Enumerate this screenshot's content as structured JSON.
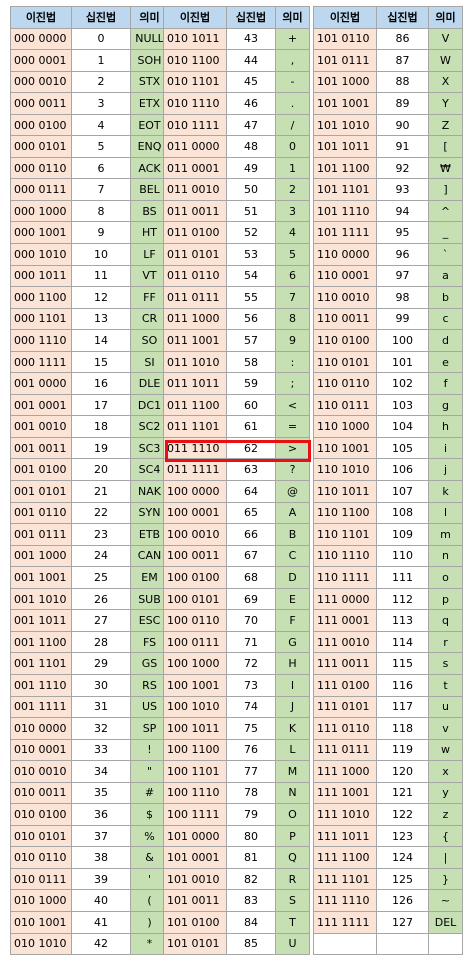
{
  "headers": {
    "binary": "이진법",
    "decimal": "십진법",
    "meaning": "의미"
  },
  "highlight_color": "#e81010",
  "columns": [
    [
      [
        "000 0000",
        "0",
        "NULL"
      ],
      [
        "000 0001",
        "1",
        "SOH"
      ],
      [
        "000 0010",
        "2",
        "STX"
      ],
      [
        "000 0011",
        "3",
        "ETX"
      ],
      [
        "000 0100",
        "4",
        "EOT"
      ],
      [
        "000 0101",
        "5",
        "ENQ"
      ],
      [
        "000 0110",
        "6",
        "ACK"
      ],
      [
        "000 0111",
        "7",
        "BEL"
      ],
      [
        "000 1000",
        "8",
        "BS"
      ],
      [
        "000 1001",
        "9",
        "HT"
      ],
      [
        "000 1010",
        "10",
        "LF"
      ],
      [
        "000 1011",
        "11",
        "VT"
      ],
      [
        "000 1100",
        "12",
        "FF"
      ],
      [
        "000 1101",
        "13",
        "CR"
      ],
      [
        "000 1110",
        "14",
        "SO"
      ],
      [
        "000 1111",
        "15",
        "SI"
      ],
      [
        "001 0000",
        "16",
        "DLE"
      ],
      [
        "001 0001",
        "17",
        "DC1"
      ],
      [
        "001 0010",
        "18",
        "SC2"
      ],
      [
        "001 0011",
        "19",
        "SC3"
      ],
      [
        "001 0100",
        "20",
        "SC4"
      ],
      [
        "001 0101",
        "21",
        "NAK"
      ],
      [
        "001 0110",
        "22",
        "SYN"
      ],
      [
        "001 0111",
        "23",
        "ETB"
      ],
      [
        "001 1000",
        "24",
        "CAN"
      ],
      [
        "001 1001",
        "25",
        "EM"
      ],
      [
        "001 1010",
        "26",
        "SUB"
      ],
      [
        "001 1011",
        "27",
        "ESC"
      ],
      [
        "001 1100",
        "28",
        "FS"
      ],
      [
        "001 1101",
        "29",
        "GS"
      ],
      [
        "001 1110",
        "30",
        "RS"
      ],
      [
        "001 1111",
        "31",
        "US"
      ],
      [
        "010 0000",
        "32",
        "SP"
      ],
      [
        "010 0001",
        "33",
        "!"
      ],
      [
        "010 0010",
        "34",
        "\""
      ],
      [
        "010 0011",
        "35",
        "#"
      ],
      [
        "010 0100",
        "36",
        "$"
      ],
      [
        "010 0101",
        "37",
        "%"
      ],
      [
        "010 0110",
        "38",
        "&"
      ],
      [
        "010 0111",
        "39",
        "'"
      ],
      [
        "010 1000",
        "40",
        "("
      ],
      [
        "010 1001",
        "41",
        ")"
      ],
      [
        "010 1010",
        "42",
        "*"
      ]
    ],
    [
      [
        "010 1011",
        "43",
        "+"
      ],
      [
        "010 1100",
        "44",
        ","
      ],
      [
        "010 1101",
        "45",
        "-"
      ],
      [
        "010 1110",
        "46",
        "."
      ],
      [
        "010 1111",
        "47",
        "/"
      ],
      [
        "011 0000",
        "48",
        "0"
      ],
      [
        "011 0001",
        "49",
        "1"
      ],
      [
        "011 0010",
        "50",
        "2"
      ],
      [
        "011 0011",
        "51",
        "3"
      ],
      [
        "011 0100",
        "52",
        "4"
      ],
      [
        "011 0101",
        "53",
        "5"
      ],
      [
        "011 0110",
        "54",
        "6"
      ],
      [
        "011 0111",
        "55",
        "7"
      ],
      [
        "011 1000",
        "56",
        "8"
      ],
      [
        "011 1001",
        "57",
        "9"
      ],
      [
        "011 1010",
        "58",
        ":"
      ],
      [
        "011 1011",
        "59",
        ";"
      ],
      [
        "011 1100",
        "60",
        "<"
      ],
      [
        "011 1101",
        "61",
        "="
      ],
      [
        "011 1110",
        "62",
        ">"
      ],
      [
        "011 1111",
        "63",
        "?"
      ],
      [
        "100 0000",
        "64",
        "@"
      ],
      [
        "100 0001",
        "65",
        "A"
      ],
      [
        "100 0010",
        "66",
        "B"
      ],
      [
        "100 0011",
        "67",
        "C"
      ],
      [
        "100 0100",
        "68",
        "D"
      ],
      [
        "100 0101",
        "69",
        "E"
      ],
      [
        "100 0110",
        "70",
        "F"
      ],
      [
        "100 0111",
        "71",
        "G"
      ],
      [
        "100 1000",
        "72",
        "H"
      ],
      [
        "100 1001",
        "73",
        "I"
      ],
      [
        "100 1010",
        "74",
        "J"
      ],
      [
        "100 1011",
        "75",
        "K"
      ],
      [
        "100 1100",
        "76",
        "L"
      ],
      [
        "100 1101",
        "77",
        "M"
      ],
      [
        "100 1110",
        "78",
        "N"
      ],
      [
        "100 1111",
        "79",
        "O"
      ],
      [
        "101 0000",
        "80",
        "P"
      ],
      [
        "101 0001",
        "81",
        "Q"
      ],
      [
        "101 0010",
        "82",
        "R"
      ],
      [
        "101 0011",
        "83",
        "S"
      ],
      [
        "101 0100",
        "84",
        "T"
      ],
      [
        "101 0101",
        "85",
        "U"
      ]
    ],
    [
      [
        "101 0110",
        "86",
        "V"
      ],
      [
        "101 0111",
        "87",
        "W"
      ],
      [
        "101 1000",
        "88",
        "X"
      ],
      [
        "101 1001",
        "89",
        "Y"
      ],
      [
        "101 1010",
        "90",
        "Z"
      ],
      [
        "101 1011",
        "91",
        "["
      ],
      [
        "101 1100",
        "92",
        "₩"
      ],
      [
        "101 1101",
        "93",
        "]"
      ],
      [
        "101 1110",
        "94",
        "^"
      ],
      [
        "101 1111",
        "95",
        "_"
      ],
      [
        "110 0000",
        "96",
        "`"
      ],
      [
        "110 0001",
        "97",
        "a"
      ],
      [
        "110 0010",
        "98",
        "b"
      ],
      [
        "110 0011",
        "99",
        "c"
      ],
      [
        "110 0100",
        "100",
        "d"
      ],
      [
        "110 0101",
        "101",
        "e"
      ],
      [
        "110 0110",
        "102",
        "f"
      ],
      [
        "110 0111",
        "103",
        "g"
      ],
      [
        "110 1000",
        "104",
        "h"
      ],
      [
        "110 1001",
        "105",
        "i"
      ],
      [
        "110 1010",
        "106",
        "j"
      ],
      [
        "110 1011",
        "107",
        "k"
      ],
      [
        "110 1100",
        "108",
        "l"
      ],
      [
        "110 1101",
        "109",
        "m"
      ],
      [
        "110 1110",
        "110",
        "n"
      ],
      [
        "110 1111",
        "111",
        "o"
      ],
      [
        "111 0000",
        "112",
        "p"
      ],
      [
        "111 0001",
        "113",
        "q"
      ],
      [
        "111 0010",
        "114",
        "r"
      ],
      [
        "111 0011",
        "115",
        "s"
      ],
      [
        "111 0100",
        "116",
        "t"
      ],
      [
        "111 0101",
        "117",
        "u"
      ],
      [
        "111 0110",
        "118",
        "v"
      ],
      [
        "111 0111",
        "119",
        "w"
      ],
      [
        "111 1000",
        "120",
        "x"
      ],
      [
        "111 1001",
        "121",
        "y"
      ],
      [
        "111 1010",
        "122",
        "z"
      ],
      [
        "111 1011",
        "123",
        "{"
      ],
      [
        "111 1100",
        "124",
        "|"
      ],
      [
        "111 1101",
        "125",
        "}"
      ],
      [
        "111 1110",
        "126",
        "~"
      ],
      [
        "111 1111",
        "127",
        "DEL"
      ]
    ]
  ]
}
